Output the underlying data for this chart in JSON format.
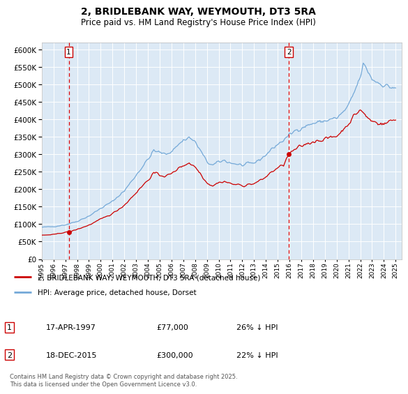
{
  "title": "2, BRIDLEBANK WAY, WEYMOUTH, DT3 5RA",
  "subtitle": "Price paid vs. HM Land Registry's House Price Index (HPI)",
  "bg_color": "#dce9f5",
  "ylim": [
    0,
    620000
  ],
  "yticks": [
    0,
    50000,
    100000,
    150000,
    200000,
    250000,
    300000,
    350000,
    400000,
    450000,
    500000,
    550000,
    600000
  ],
  "sale1_year": 1997.29,
  "sale1_price": 77000,
  "sale1_label": "1",
  "sale1_date": "17-APR-1997",
  "sale1_hpi_pct": "26% ↓ HPI",
  "sale2_year": 2015.96,
  "sale2_price": 300000,
  "sale2_label": "2",
  "sale2_date": "18-DEC-2015",
  "sale2_hpi_pct": "22% ↓ HPI",
  "red_line_color": "#cc0000",
  "blue_line_color": "#74a9d8",
  "vline_color": "#dd0000",
  "legend_label_red": "2, BRIDLEBANK WAY, WEYMOUTH, DT3 5RA (detached house)",
  "legend_label_blue": "HPI: Average price, detached house, Dorset",
  "footer": "Contains HM Land Registry data © Crown copyright and database right 2025.\nThis data is licensed under the Open Government Licence v3.0.",
  "xlim_left": 1995.0,
  "xlim_right": 2025.5
}
